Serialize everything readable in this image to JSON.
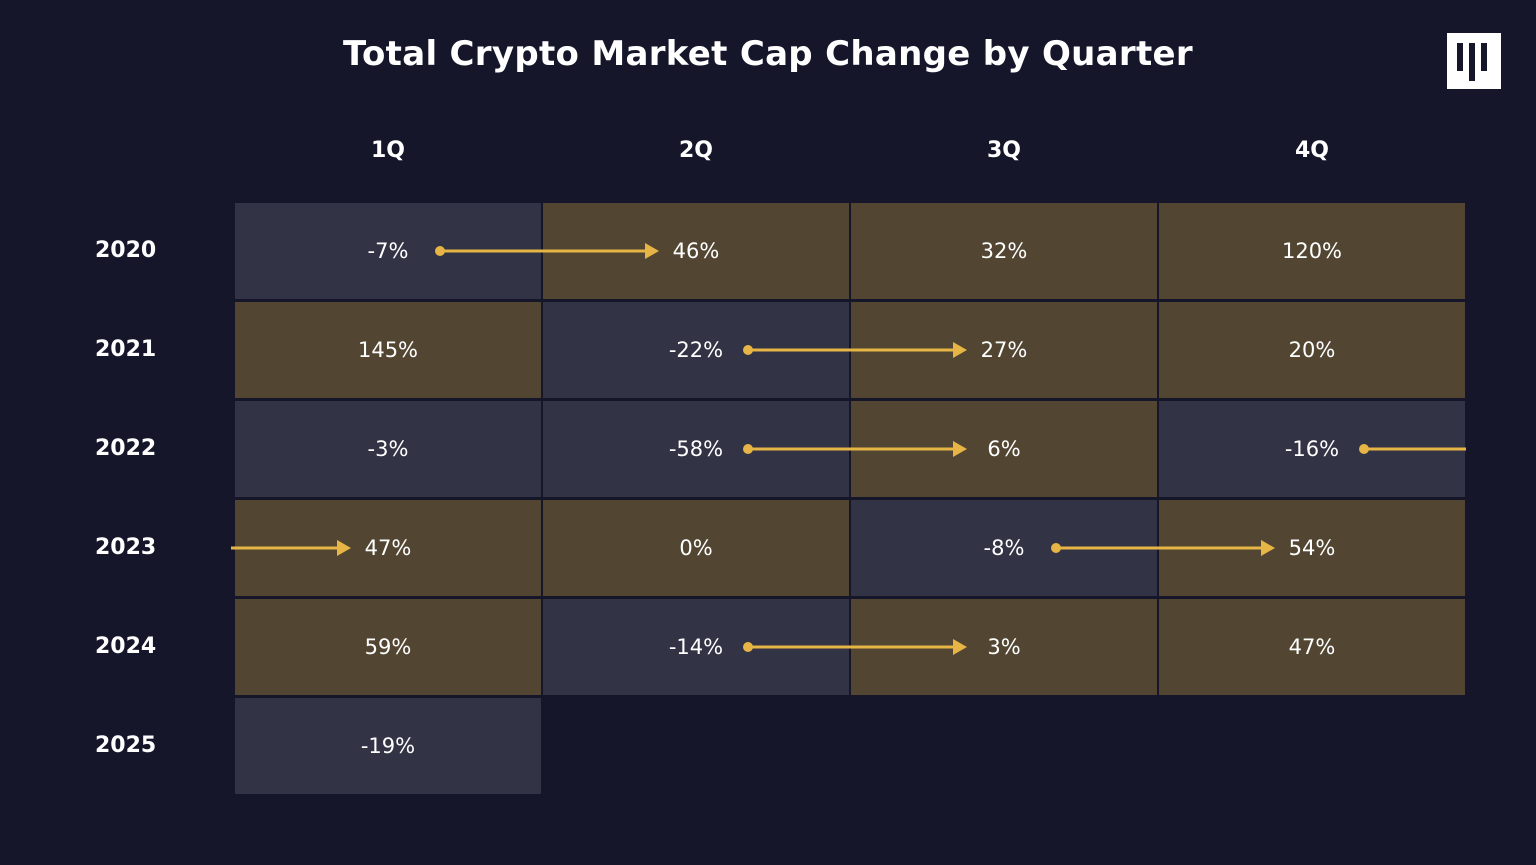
{
  "title": "Total Crypto Market Cap Change by Quarter",
  "colors": {
    "background": "#15162a",
    "positive": "#524633",
    "negative": "#323345",
    "arrow": "#e6b545"
  },
  "chart_data": {
    "type": "table",
    "title": "Total Crypto Market Cap Change by Quarter",
    "columns": [
      "1Q",
      "2Q",
      "3Q",
      "4Q"
    ],
    "rows": [
      {
        "year": "2020",
        "values": [
          "-7%",
          "46%",
          "32%",
          "120%"
        ]
      },
      {
        "year": "2021",
        "values": [
          "145%",
          "-22%",
          "27%",
          "20%"
        ]
      },
      {
        "year": "2022",
        "values": [
          "-3%",
          "-58%",
          "6%",
          "-16%"
        ]
      },
      {
        "year": "2023",
        "values": [
          "47%",
          "0%",
          "-8%",
          "54%"
        ]
      },
      {
        "year": "2024",
        "values": [
          "59%",
          "-14%",
          "3%",
          "47%"
        ]
      },
      {
        "year": "2025",
        "values": [
          "-19%"
        ]
      }
    ],
    "arrows": [
      {
        "year": "2020",
        "from": "1Q",
        "to": "2Q"
      },
      {
        "year": "2021",
        "from": "2Q",
        "to": "3Q"
      },
      {
        "year": "2022",
        "from": "2Q",
        "to": "3Q"
      },
      {
        "year": "2022",
        "from": "4Q",
        "to": "next"
      },
      {
        "year": "2023",
        "from": "prev",
        "to": "1Q"
      },
      {
        "year": "2023",
        "from": "3Q",
        "to": "4Q"
      },
      {
        "year": "2024",
        "from": "2Q",
        "to": "3Q"
      }
    ]
  }
}
